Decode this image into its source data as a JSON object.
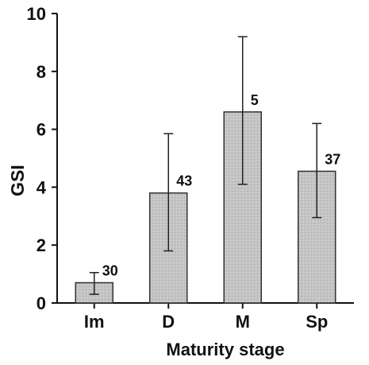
{
  "chart_data": {
    "type": "bar",
    "title": "",
    "xlabel": "Maturity stage",
    "ylabel": "GSI",
    "categories": [
      "Im",
      "D",
      "M",
      "Sp"
    ],
    "values": [
      0.7,
      3.8,
      6.6,
      4.55
    ],
    "error_low": [
      0.3,
      1.8,
      4.1,
      2.95
    ],
    "error_high": [
      1.05,
      5.85,
      9.2,
      6.2
    ],
    "sample_labels": [
      "30",
      "43",
      "5",
      "37"
    ],
    "ylim": [
      0,
      10
    ],
    "yticks": [
      "0",
      "2",
      "4",
      "6",
      "8",
      "10"
    ],
    "grid": false,
    "legend": "none",
    "colors": {
      "bar_fill": "#c4c4c4",
      "bar_stroke": "#333333",
      "axis": "#111111"
    }
  }
}
